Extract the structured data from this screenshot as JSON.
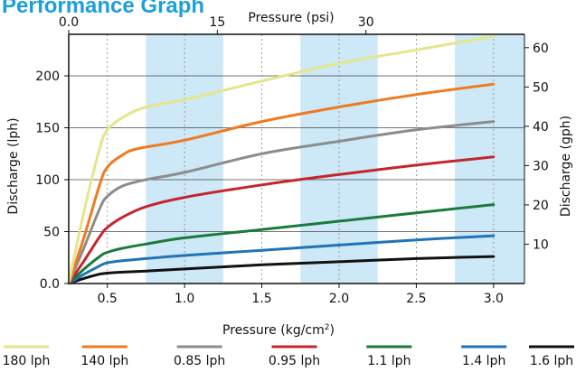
{
  "chart_data": {
    "type": "line",
    "title": "Performance Graph",
    "xlabel": "Pressure (kg/cm²)",
    "x2label": "Pressure (psi)",
    "ylabel": "Discharge (lph)",
    "y2label": "Discharge (gph)",
    "xlim": [
      0.25,
      3.2
    ],
    "ylim": [
      0,
      240
    ],
    "x2lim": [
      0,
      46
    ],
    "y2lim": [
      0,
      63.4
    ],
    "x_ticks": [
      "0.5",
      "1.0",
      "1.5",
      "2.0",
      "2.5",
      "3.0"
    ],
    "x_tick_values": [
      0.5,
      1.0,
      1.5,
      2.0,
      2.5,
      3.0
    ],
    "y_ticks": [
      "0.0",
      "50",
      "100",
      "150",
      "200"
    ],
    "y_tick_values": [
      0,
      50,
      100,
      150,
      200
    ],
    "x2_ticks": [
      "0.0",
      "15",
      "30"
    ],
    "x2_tick_values": [
      0,
      15,
      30
    ],
    "y2_ticks": [
      "10",
      "20",
      "30",
      "40",
      "50",
      "60"
    ],
    "y2_tick_values": [
      10,
      20,
      30,
      40,
      50,
      60
    ],
    "bands": [
      [
        0.75,
        1.25
      ],
      [
        1.75,
        2.25
      ],
      [
        2.75,
        3.2
      ]
    ],
    "band_color": "#cde8f6",
    "grid": "horizontal lines at y ticks, dashed vertical lines at 0.5 intervals",
    "legend_position": "bottom",
    "series": [
      {
        "name": "180 lph",
        "color": "#e5e68a",
        "x": [
          0.25,
          0.35,
          0.45,
          0.5,
          0.6,
          0.75,
          1.0,
          1.5,
          2.0,
          2.5,
          3.0
        ],
        "y": [
          0,
          70,
          130,
          148,
          160,
          170,
          177,
          195,
          212,
          225,
          238
        ]
      },
      {
        "name": "140 lph",
        "color": "#ef7a1f",
        "x": [
          0.25,
          0.35,
          0.45,
          0.5,
          0.6,
          0.7,
          1.0,
          1.5,
          2.0,
          2.5,
          3.0
        ],
        "y": [
          0,
          45,
          95,
          112,
          124,
          130,
          138,
          156,
          170,
          182,
          192
        ]
      },
      {
        "name": "0.85 lph",
        "color": "#8c8c8c",
        "x": [
          0.25,
          0.35,
          0.45,
          0.5,
          0.6,
          0.75,
          1.0,
          1.5,
          2.0,
          2.5,
          3.0
        ],
        "y": [
          0,
          35,
          72,
          84,
          94,
          100,
          107,
          125,
          137,
          148,
          156
        ]
      },
      {
        "name": "0.95 lph",
        "color": "#c4262e",
        "x": [
          0.25,
          0.35,
          0.45,
          0.5,
          0.6,
          0.75,
          1.0,
          1.5,
          2.0,
          2.5,
          3.0
        ],
        "y": [
          0,
          22,
          45,
          54,
          64,
          74,
          83,
          95,
          105,
          114,
          122
        ]
      },
      {
        "name": "1.1 lph",
        "color": "#1a7a3c",
        "x": [
          0.25,
          0.35,
          0.45,
          0.5,
          0.6,
          0.75,
          1.0,
          1.5,
          2.0,
          2.5,
          3.0
        ],
        "y": [
          0,
          14,
          26,
          30,
          34,
          38,
          44,
          52,
          60,
          68,
          76
        ]
      },
      {
        "name": "1.4 lph",
        "color": "#1f74b8",
        "x": [
          0.25,
          0.35,
          0.45,
          0.5,
          0.6,
          0.75,
          1.0,
          1.5,
          2.0,
          2.5,
          3.0
        ],
        "y": [
          0,
          9,
          17,
          20,
          22,
          24,
          27,
          32,
          37,
          42,
          46
        ]
      },
      {
        "name": "1.6 lph",
        "color": "#111111",
        "x": [
          0.25,
          0.35,
          0.45,
          0.5,
          0.6,
          0.75,
          1.0,
          1.5,
          2.0,
          2.5,
          3.0
        ],
        "y": [
          0,
          5,
          9,
          10,
          11,
          12,
          14,
          18,
          21,
          24,
          26
        ]
      }
    ]
  }
}
